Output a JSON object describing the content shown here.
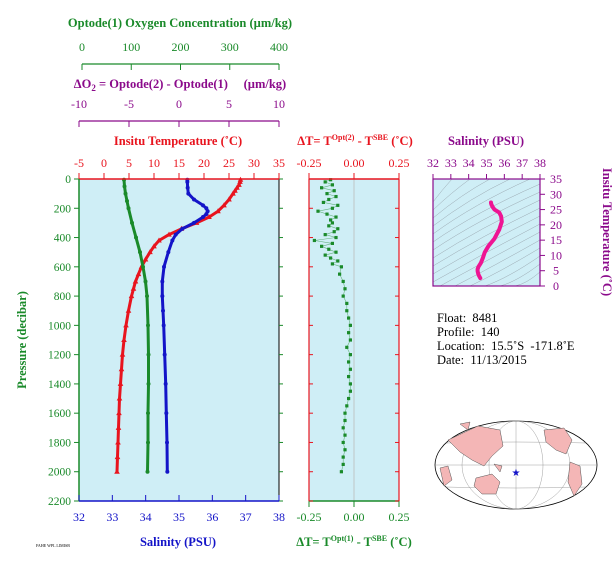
{
  "colors": {
    "oxygen": "#1a8a2a",
    "delta_o2": "#8b0a8b",
    "temperature": "#e8141e",
    "salinity": "#1414c8",
    "panel_bg": "#cfeef6",
    "ts_curve": "#ee1493",
    "axis_dark": "#000000"
  },
  "chart_data": [
    {
      "name": "main-profile",
      "type": "line",
      "ylabel": "Pressure (decibar)",
      "ylim": [
        2200,
        0
      ],
      "yticks": [
        0,
        200,
        400,
        600,
        800,
        1000,
        1200,
        1400,
        1600,
        1800,
        2000,
        2200
      ],
      "axes": {
        "oxygen": {
          "label": "Optode(1) Oxygen Concentration (µm/kg)",
          "range": [
            0,
            400
          ],
          "ticks": [
            0,
            100,
            200,
            300,
            400
          ]
        },
        "delta_o2": {
          "label_prefix": "ΔO",
          "label_sub": "2",
          "label_rest": " = Optode(2) - Optode(1)     (µm/kg)",
          "range": [
            -10,
            10
          ],
          "ticks": [
            -10,
            -5,
            0,
            5,
            10
          ]
        },
        "temperature": {
          "label": "Insitu Temperature (˚C)",
          "range": [
            -5,
            35
          ],
          "ticks": [
            -5,
            0,
            5,
            10,
            15,
            20,
            25,
            30,
            35
          ]
        },
        "salinity": {
          "label": "Salinity (PSU)",
          "range": [
            32,
            38
          ],
          "ticks": [
            32,
            33,
            34,
            35,
            36,
            37,
            38
          ]
        }
      },
      "series": [
        {
          "name": "Temperature",
          "axis": "temperature",
          "pressure": [
            5,
            20,
            40,
            60,
            80,
            100,
            140,
            180,
            220,
            260,
            300,
            340,
            380,
            420,
            460,
            500,
            550,
            600,
            650,
            700,
            750,
            800,
            900,
            1000,
            1100,
            1200,
            1300,
            1400,
            1500,
            1600,
            1700,
            1800,
            1900,
            2000
          ],
          "values": [
            27.3,
            27.2,
            27.0,
            26.6,
            26.2,
            25.8,
            25.0,
            24.0,
            22.8,
            21.0,
            18.5,
            15.5,
            13.0,
            11.0,
            10.0,
            9.2,
            8.3,
            7.5,
            6.9,
            6.3,
            5.9,
            5.5,
            4.9,
            4.4,
            4.0,
            3.7,
            3.5,
            3.3,
            3.1,
            3.0,
            2.9,
            2.8,
            2.7,
            2.6
          ]
        },
        {
          "name": "Salinity",
          "axis": "salinity",
          "pressure": [
            5,
            20,
            60,
            100,
            140,
            180,
            200,
            220,
            240,
            260,
            300,
            340,
            380,
            420,
            500,
            600,
            700,
            800,
            900,
            1000,
            1200,
            1400,
            1600,
            1800,
            2000
          ],
          "values": [
            35.25,
            35.25,
            35.26,
            35.28,
            35.45,
            35.72,
            35.82,
            35.86,
            35.82,
            35.72,
            35.45,
            35.1,
            34.9,
            34.8,
            34.68,
            34.55,
            34.5,
            34.5,
            34.52,
            34.54,
            34.57,
            34.6,
            34.62,
            34.64,
            34.65
          ]
        },
        {
          "name": "Oxygen",
          "axis": "oxygen",
          "pressure": [
            5,
            50,
            100,
            150,
            200,
            300,
            400,
            500,
            600,
            700,
            800,
            1000,
            1200,
            1400,
            1600,
            1800,
            2000
          ],
          "values": [
            90,
            91,
            93,
            96,
            99,
            106,
            114,
            122,
            128,
            133,
            136,
            138,
            139,
            139,
            138,
            138,
            137
          ]
        }
      ]
    },
    {
      "name": "delta-t",
      "type": "scatter",
      "xlabel_top": {
        "prefix": "ΔT= T",
        "sup": "Opt(2)",
        "mid": " - T",
        "sup2": "SBE",
        "suffix": " (˚C)"
      },
      "xlabel_bottom": {
        "prefix": "ΔT= T",
        "sup": "Opt(1)",
        "mid": " - T",
        "sup2": "SBE",
        "suffix": " (˚C)"
      },
      "xlim": [
        -0.25,
        0.25
      ],
      "xticks": [
        -0.25,
        0.0,
        0.25
      ],
      "xtick_labels": [
        "-0.25",
        "0.00",
        "0.25"
      ],
      "series": [
        {
          "name": "Optode 1",
          "pressure": [
            5,
            20,
            40,
            60,
            80,
            100,
            120,
            140,
            160,
            180,
            200,
            220,
            240,
            260,
            280,
            300,
            320,
            340,
            360,
            380,
            400,
            420,
            440,
            460,
            480,
            500,
            520,
            540,
            560,
            580,
            600,
            650,
            700,
            750,
            800,
            850,
            900,
            950,
            1000,
            1050,
            1100,
            1150,
            1200,
            1250,
            1300,
            1350,
            1400,
            1450,
            1500,
            1550,
            1600,
            1650,
            1700,
            1750,
            1800,
            1850,
            1900,
            1950,
            2000
          ],
          "values": [
            -0.13,
            -0.16,
            -0.12,
            -0.18,
            -0.11,
            -0.15,
            -0.1,
            -0.14,
            -0.17,
            -0.09,
            -0.12,
            -0.2,
            -0.15,
            -0.1,
            -0.13,
            -0.12,
            -0.14,
            -0.09,
            -0.11,
            -0.16,
            -0.1,
            -0.22,
            -0.12,
            -0.18,
            -0.14,
            -0.1,
            -0.16,
            -0.13,
            -0.09,
            -0.12,
            -0.07,
            -0.08,
            -0.06,
            -0.05,
            -0.06,
            -0.04,
            -0.04,
            -0.03,
            -0.02,
            -0.03,
            -0.02,
            -0.04,
            -0.02,
            -0.03,
            -0.02,
            -0.03,
            -0.02,
            -0.02,
            -0.03,
            -0.04,
            -0.05,
            -0.05,
            -0.06,
            -0.05,
            -0.06,
            -0.05,
            -0.06,
            -0.06,
            -0.07
          ]
        }
      ]
    },
    {
      "name": "t-s-diagram",
      "type": "line",
      "xlabel": "Salinity (PSU)",
      "ylabel": "Insitu Temperature (˚C)",
      "xlim": [
        32,
        38
      ],
      "ylim": [
        0,
        35
      ],
      "xticks": [
        32,
        33,
        34,
        35,
        36,
        37,
        38
      ],
      "yticks": [
        0,
        5,
        10,
        15,
        20,
        25,
        30,
        35
      ],
      "series": [
        {
          "name": "T-S",
          "x": [
            34.65,
            34.6,
            34.55,
            34.52,
            34.5,
            34.5,
            34.55,
            34.68,
            34.8,
            34.9,
            35.1,
            35.45,
            35.72,
            35.86,
            35.82,
            35.72,
            35.45,
            35.35,
            35.28,
            35.26,
            35.25
          ],
          "y": [
            2.6,
            3.1,
            3.7,
            4.4,
            4.9,
            5.5,
            6.3,
            7.5,
            9.2,
            11.0,
            13.0,
            15.5,
            18.5,
            21.0,
            22.8,
            24.0,
            25.0,
            25.8,
            26.6,
            27.0,
            27.3
          ]
        }
      ]
    }
  ],
  "float_info": {
    "float_label": "Float:",
    "float_value": "8481",
    "profile_label": "Profile:",
    "profile_value": "140",
    "location_label": "Location:",
    "location_lat": "15.5˚S",
    "location_lon": "-171.8˚E",
    "date_label": "Date:",
    "date_value": "11/13/2015"
  },
  "footer_stamp": "FAHE WPL LIMISB",
  "map": {
    "marker_icon": "star-marker-icon",
    "marker_color": "#1414c8"
  }
}
